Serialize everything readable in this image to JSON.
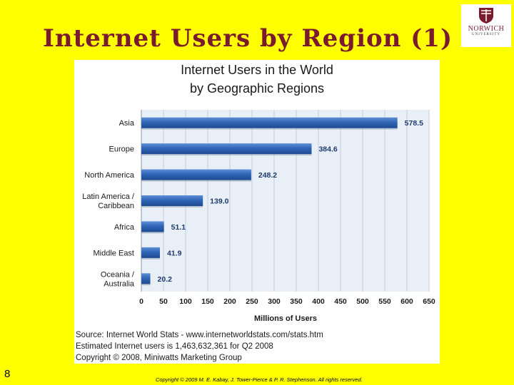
{
  "slide": {
    "title": "Internet Users by Region (1)",
    "page_number": "8",
    "copyright": "Copyright © 2009 M. E. Kabay, J. Tower-Pierce & P. R. Stephenson.  All rights reserved."
  },
  "logo": {
    "line1": "NORWICH",
    "line2": "UNIVERSITY"
  },
  "chart_data": {
    "type": "bar",
    "orientation": "horizontal",
    "title": "Internet Users in the World",
    "subtitle": "by Geographic Regions",
    "xlabel": "Millions of Users",
    "ylabel": "",
    "xlim": [
      0,
      650
    ],
    "x_ticks": [
      0,
      50,
      100,
      150,
      200,
      250,
      300,
      350,
      400,
      450,
      500,
      550,
      600,
      650
    ],
    "grid": true,
    "categories": [
      [
        "Asia"
      ],
      [
        "Europe"
      ],
      [
        "North America"
      ],
      [
        "Latin America /",
        "Caribbean"
      ],
      [
        "Africa"
      ],
      [
        "Middle East"
      ],
      [
        "Oceania  /",
        "Australia"
      ]
    ],
    "values": [
      578.5,
      384.6,
      248.2,
      139.0,
      51.1,
      41.9,
      20.2
    ],
    "value_labels": [
      "578.5",
      "384.6",
      "248.2",
      "139.0",
      "51.1",
      "41.9",
      "20.2"
    ],
    "bar_color": "#2F66B8",
    "source_lines": [
      "Source: Internet World Stats - www.internetworldstats.com/stats.htm",
      "Estimated Internet users is 1,463,632,361 for Q2 2008",
      "Copyright © 2008, Miniwatts Marketing Group"
    ]
  },
  "colors": {
    "background": "#FFFF00",
    "title": "#7A1A2E",
    "plot_area": "#E9EFF7"
  }
}
